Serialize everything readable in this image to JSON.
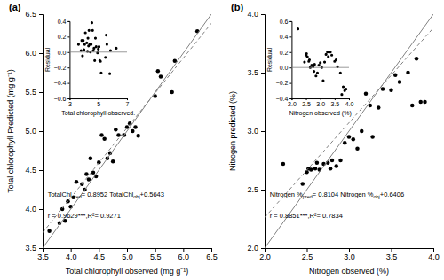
{
  "chart_data": [
    {
      "type": "scatter",
      "label": "(a)",
      "xlabel": "Total chlorophyll observed (mg g⁻¹)",
      "ylabel": "Total chlorophyll Predicted (mg g⁻¹)",
      "xlim": [
        3.5,
        6.5
      ],
      "ylim": [
        3.5,
        6.5
      ],
      "xticks": [
        3.5,
        {
          "value": 4.0,
          "label": "4.0"
        },
        4.5,
        {
          "value": 5.0,
          "label": "5.0"
        },
        5.5,
        {
          "value": 6.0,
          "label": "6.0"
        },
        6.5
      ],
      "yticks": [
        3.5,
        {
          "value": 4.0,
          "label": "4.0"
        },
        4.5,
        {
          "value": 5.0,
          "label": "5.0"
        },
        5.5,
        {
          "value": 6.0,
          "label": "6.0"
        },
        6.5
      ],
      "series": [
        {
          "type": "scatter",
          "color": "#000000",
          "marker": "circle",
          "x": [
            3.62,
            3.8,
            3.85,
            3.9,
            3.95,
            4.0,
            4.05,
            4.1,
            4.2,
            4.25,
            4.28,
            4.32,
            4.35,
            4.4,
            4.45,
            4.5,
            4.55,
            4.6,
            4.65,
            4.7,
            4.75,
            4.8,
            4.85,
            4.95,
            5.0,
            5.05,
            5.1,
            5.15,
            5.2,
            5.5,
            5.55,
            5.6,
            5.8,
            5.85,
            6.25
          ],
          "values": [
            3.72,
            3.82,
            4.0,
            3.85,
            4.1,
            4.03,
            4.15,
            4.35,
            4.32,
            4.25,
            4.45,
            4.38,
            4.65,
            4.47,
            4.42,
            4.6,
            4.95,
            4.9,
            4.65,
            4.72,
            4.61,
            5.02,
            4.95,
            4.95,
            5.05,
            5.1,
            5.0,
            5.05,
            4.94,
            5.45,
            5.77,
            5.7,
            5.5,
            5.9,
            6.28
          ]
        },
        {
          "type": "line",
          "color": "#808080",
          "line_style": "solid",
          "x": [
            3.5,
            6.5
          ],
          "values": [
            3.5,
            6.5
          ]
        },
        {
          "type": "line",
          "color": "#808080",
          "line_style": "dashed",
          "x": [
            3.5,
            6.5
          ],
          "values": [
            3.6975,
            6.3831
          ]
        }
      ],
      "annotations": [
        [
          "TotalChl",
          "pred",
          "= 0.8952 TotalChl",
          "obj",
          "+0.5643"
        ],
        [
          "r = 0.9629***,R²= 0.9271"
        ]
      ],
      "inset": {
        "type": "scatter",
        "xlabel": "Total chlorophyll observed.",
        "ylabel": "Residual",
        "xlim": [
          3,
          7
        ],
        "ylim": [
          -0.6,
          0.4
        ],
        "xticks": [
          3,
          5,
          7
        ],
        "yticks": [
          {
            "value": -0.6,
            "label": "−0.6"
          },
          {
            "value": -0.4,
            "label": "−0.4"
          },
          {
            "value": -0.2,
            "label": "−0.2"
          },
          {
            "value": 0.0,
            "label": "0.0"
          },
          0.2,
          0.4
        ],
        "series": [
          {
            "type": "scatter",
            "color": "#000000",
            "marker": "circle",
            "x": [
              3.62,
              3.8,
              3.85,
              3.9,
              3.95,
              4.0,
              4.05,
              4.1,
              4.2,
              4.25,
              4.28,
              4.32,
              4.35,
              4.4,
              4.45,
              4.5,
              4.55,
              4.6,
              4.65,
              4.7,
              4.75,
              4.8,
              4.85,
              4.95,
              5.0,
              5.05,
              5.1,
              5.15,
              5.2,
              5.5,
              5.55,
              5.6,
              5.8,
              5.85,
              6.25
            ],
            "values": [
              0.1,
              0.02,
              0.15,
              -0.05,
              0.15,
              0.03,
              0.1,
              0.25,
              0.12,
              0.01,
              0.18,
              0.08,
              0.28,
              0.1,
              0.0,
              0.1,
              0.38,
              0.28,
              0.02,
              0.05,
              -0.11,
              0.18,
              0.07,
              -0.01,
              0.04,
              0.07,
              -0.11,
              -0.12,
              -0.27,
              -0.07,
              0.22,
              0.1,
              -0.28,
              0.02,
              0.05
            ]
          },
          {
            "type": "line",
            "color": "#808080",
            "line_style": "solid",
            "x": [
              3,
              7
            ],
            "values": [
              0,
              0
            ]
          }
        ]
      }
    },
    {
      "type": "scatter",
      "label": "(b)",
      "xlabel": "Nitrogen  observed (%)",
      "ylabel": "Nitrogen predicted (%)",
      "xlim": [
        2.0,
        4.0
      ],
      "ylim": [
        2.0,
        4.0
      ],
      "xticks": [
        {
          "value": 2.0,
          "label": "2.0"
        },
        2.5,
        {
          "value": 3.0,
          "label": "3.0"
        },
        3.5,
        {
          "value": 4.0,
          "label": "4.0"
        }
      ],
      "yticks": [
        {
          "value": 2.0,
          "label": "2.0"
        },
        2.5,
        {
          "value": 3.0,
          "label": "3.0"
        },
        3.5,
        {
          "value": 4.0,
          "label": "4.0"
        }
      ],
      "series": [
        {
          "type": "scatter",
          "color": "#000000",
          "marker": "circle",
          "x": [
            2.22,
            2.45,
            2.5,
            2.52,
            2.55,
            2.6,
            2.62,
            2.65,
            2.7,
            2.75,
            2.78,
            2.8,
            2.85,
            2.9,
            2.95,
            3.0,
            3.05,
            3.1,
            3.15,
            3.2,
            3.25,
            3.28,
            3.35,
            3.4,
            3.5,
            3.55,
            3.6,
            3.7,
            3.75,
            3.8,
            3.85,
            3.9
          ],
          "values": [
            2.72,
            2.55,
            2.65,
            2.68,
            2.67,
            2.68,
            2.73,
            2.67,
            2.72,
            2.73,
            2.68,
            2.75,
            2.7,
            2.75,
            2.9,
            2.95,
            2.93,
            2.85,
            3.0,
            3.32,
            3.22,
            2.95,
            3.2,
            3.36,
            3.35,
            3.48,
            3.42,
            3.5,
            3.22,
            3.62,
            3.25,
            3.25
          ]
        },
        {
          "type": "line",
          "color": "#808080",
          "line_style": "solid",
          "x": [
            2.0,
            4.0
          ],
          "values": [
            2.0,
            4.0
          ]
        },
        {
          "type": "line",
          "color": "#808080",
          "line_style": "dashed",
          "x": [
            2.0,
            4.0
          ],
          "values": [
            2.2614,
            3.8822
          ]
        }
      ],
      "annotations": [
        [
          "Nitrogen %",
          "pred",
          "= 0.8104 Nitrogen %",
          "obj",
          "+0.6406"
        ],
        [
          "r = 0.8851***,R²= 0.7834"
        ]
      ],
      "inset": {
        "type": "scatter",
        "xlabel": "Nitrogen observed (%)",
        "ylabel": "Residual",
        "xlim": [
          2,
          4
        ],
        "ylim": [
          -0.4,
          0.6
        ],
        "xticks": [
          {
            "value": 2,
            "label": "2.0"
          },
          2.5,
          {
            "value": 3,
            "label": "3.0"
          },
          3.5,
          {
            "value": 4,
            "label": "4.0"
          }
        ],
        "yticks": [
          {
            "value": -0.4,
            "label": "−0.4"
          },
          {
            "value": -0.2,
            "label": "−0.2"
          },
          {
            "value": 0.0,
            "label": "0.0"
          },
          0.2,
          0.4,
          0.6
        ],
        "series": [
          {
            "type": "scatter",
            "color": "#000000",
            "marker": "circle",
            "x": [
              2.22,
              2.45,
              2.5,
              2.52,
              2.55,
              2.6,
              2.62,
              2.65,
              2.7,
              2.75,
              2.78,
              2.8,
              2.85,
              2.9,
              2.95,
              3.0,
              3.05,
              3.1,
              3.15,
              3.2,
              3.25,
              3.28,
              3.35,
              3.4,
              3.5,
              3.55,
              3.6,
              3.7,
              3.75,
              3.8,
              3.85,
              3.9
            ],
            "values": [
              0.5,
              0.07,
              0.16,
              0.18,
              0.14,
              0.08,
              0.1,
              0.0,
              0.03,
              0.01,
              -0.05,
              0.04,
              -0.11,
              -0.07,
              0.03,
              0.06,
              0.0,
              -0.17,
              0.07,
              0.17,
              0.2,
              0.14,
              0.2,
              0.16,
              0.08,
              0.1,
              0.01,
              -0.07,
              -0.35,
              -0.25,
              -0.3,
              -0.28
            ]
          },
          {
            "type": "line",
            "color": "#808080",
            "line_style": "solid",
            "x": [
              2,
              4
            ],
            "values": [
              0,
              0
            ]
          }
        ]
      }
    }
  ]
}
